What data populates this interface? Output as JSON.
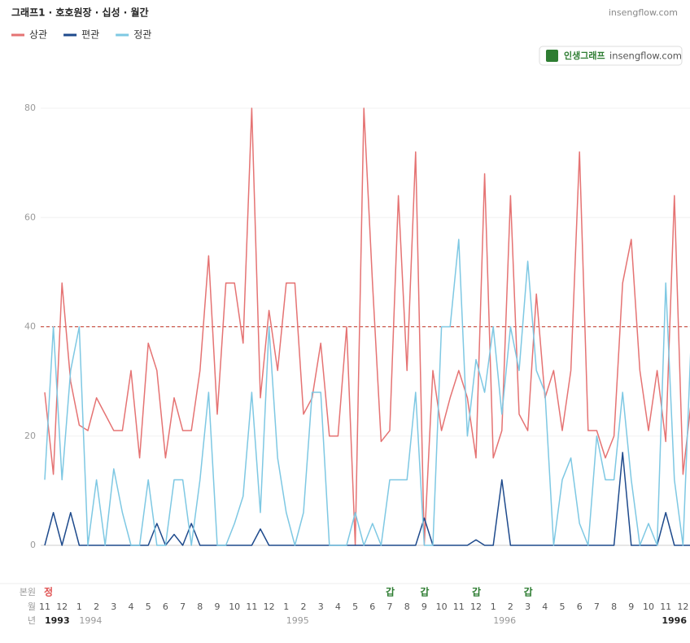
{
  "chart_data": {
    "type": "line",
    "title": "그래프1 · 호호원장 · 십성 · 월간",
    "site": "insengflow.com",
    "badge": {
      "brand": "인생그래프",
      "site": "insengflow.com"
    },
    "row_labels": {
      "pillar": "본원",
      "month": "월",
      "year": "년"
    },
    "categories": [
      "11",
      null,
      "12",
      null,
      "1",
      null,
      "2",
      null,
      "3",
      null,
      "4",
      null,
      "5",
      null,
      "6",
      null,
      "7",
      null,
      "8",
      null,
      "9",
      null,
      "10",
      null,
      "11",
      null,
      "12",
      null,
      "1",
      null,
      "2",
      null,
      "3",
      null,
      "4",
      null,
      "5",
      null,
      "6",
      null,
      "7",
      null,
      "8",
      null,
      "9",
      null,
      "10",
      null,
      "11",
      null,
      "12",
      null,
      "1",
      null,
      "2",
      null,
      "3",
      null,
      "4",
      null,
      "5",
      null,
      "6",
      null,
      "7",
      null,
      "8",
      null,
      "9",
      null,
      "10",
      null,
      "11",
      null,
      "12",
      null
    ],
    "year_labels": [
      "1993",
      null,
      null,
      null,
      "1994",
      null,
      null,
      null,
      null,
      null,
      null,
      null,
      null,
      null,
      null,
      null,
      null,
      null,
      null,
      null,
      null,
      null,
      null,
      null,
      null,
      null,
      null,
      null,
      "1995",
      null,
      null,
      null,
      null,
      null,
      null,
      null,
      null,
      null,
      null,
      null,
      null,
      null,
      null,
      null,
      null,
      null,
      null,
      null,
      null,
      null,
      null,
      null,
      "1996",
      null,
      null,
      null,
      null,
      null,
      null,
      null,
      null,
      null,
      null,
      null,
      null,
      null,
      null,
      null,
      null,
      null,
      null,
      null,
      "1996",
      null
    ],
    "pillar_labels": [
      "정",
      null,
      null,
      null,
      null,
      null,
      null,
      null,
      null,
      null,
      null,
      null,
      null,
      null,
      null,
      null,
      null,
      null,
      null,
      null,
      null,
      null,
      null,
      null,
      null,
      null,
      null,
      null,
      null,
      null,
      null,
      null,
      null,
      null,
      null,
      null,
      null,
      null,
      null,
      null,
      "갑",
      null,
      null,
      null,
      "갑",
      null,
      null,
      null,
      null,
      null,
      "갑",
      null,
      null,
      null,
      null,
      null,
      "갑",
      null,
      null,
      null,
      null,
      null,
      null,
      null,
      null,
      null,
      null,
      null,
      null,
      null,
      null,
      null,
      null,
      null,
      null,
      null
    ],
    "pillar_colors": {
      "정": "#e05252",
      "갑": "#2e7d32"
    },
    "series": [
      {
        "name": "상관",
        "color": "#e57373",
        "values": [
          28,
          13,
          48,
          30,
          22,
          21,
          27,
          24,
          21,
          21,
          32,
          16,
          37,
          32,
          16,
          27,
          21,
          21,
          32,
          53,
          24,
          48,
          48,
          37,
          80,
          27,
          43,
          32,
          48,
          48,
          24,
          27,
          37,
          20,
          20,
          40,
          0,
          80,
          48,
          19,
          21,
          64,
          32,
          72,
          0,
          32,
          21,
          27,
          32,
          27,
          16,
          68,
          16,
          21,
          64,
          24,
          21,
          46,
          27,
          32,
          21,
          32,
          72,
          21,
          21,
          16,
          20,
          48,
          56,
          32,
          21,
          32,
          19,
          64,
          13,
          27
        ]
      },
      {
        "name": "편관",
        "color": "#1e4a8c",
        "values": [
          0,
          6,
          0,
          6,
          0,
          0,
          0,
          0,
          0,
          0,
          0,
          0,
          0,
          4,
          0,
          2,
          0,
          4,
          0,
          0,
          0,
          0,
          0,
          0,
          0,
          3,
          0,
          0,
          0,
          0,
          0,
          0,
          0,
          0,
          0,
          0,
          0,
          0,
          0,
          0,
          0,
          0,
          0,
          0,
          5,
          0,
          0,
          0,
          0,
          0,
          1,
          0,
          0,
          12,
          0,
          0,
          0,
          0,
          0,
          0,
          0,
          0,
          0,
          0,
          0,
          0,
          0,
          17,
          0,
          0,
          0,
          0,
          6,
          0,
          0,
          0
        ]
      },
      {
        "name": "정관",
        "color": "#7ec8e3",
        "values": [
          12,
          40,
          12,
          32,
          40,
          0,
          12,
          0,
          14,
          6,
          0,
          0,
          12,
          0,
          0,
          12,
          12,
          0,
          12,
          28,
          0,
          0,
          4,
          9,
          28,
          6,
          40,
          16,
          6,
          0,
          6,
          28,
          28,
          0,
          0,
          0,
          6,
          0,
          4,
          0,
          12,
          12,
          12,
          28,
          0,
          0,
          40,
          40,
          56,
          20,
          34,
          28,
          40,
          24,
          40,
          32,
          52,
          32,
          28,
          0,
          12,
          16,
          4,
          0,
          20,
          12,
          12,
          28,
          12,
          0,
          4,
          0,
          48,
          12,
          0,
          40
        ]
      }
    ],
    "ylim": [
      0,
      80
    ],
    "yticks": [
      0,
      20,
      40,
      60,
      80
    ],
    "grid": true,
    "reference_line": 40,
    "legend": "top-left"
  }
}
